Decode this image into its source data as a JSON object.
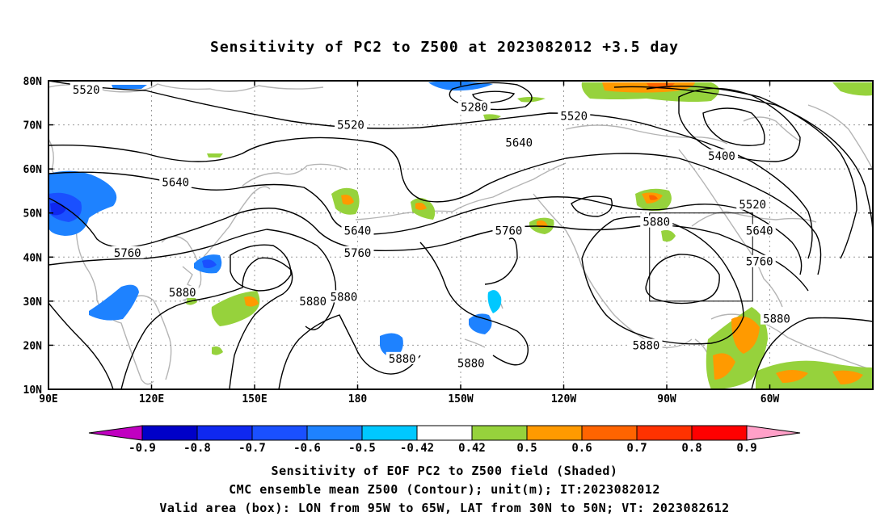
{
  "chart_data": {
    "type": "heatmap",
    "title": "Sensitivity of PC2 to Z500 at 2023082012 +3.5 day",
    "map_extent": {
      "lon": [
        "90E",
        "30W"
      ],
      "lat": [
        "10N",
        "80N"
      ]
    },
    "lat_ticks": [
      "80N",
      "70N",
      "60N",
      "50N",
      "40N",
      "30N",
      "20N",
      "10N"
    ],
    "lon_ticks": [
      "90E",
      "120E",
      "150E",
      "180",
      "150W",
      "120W",
      "90W",
      "60W"
    ],
    "grid": true,
    "colorbar": {
      "ticks": [
        "-0.9",
        "-0.8",
        "-0.7",
        "-0.6",
        "-0.5",
        "-0.42",
        "0.42",
        "0.5",
        "0.6",
        "0.7",
        "0.8",
        "0.9"
      ],
      "colors": [
        "#c000c0",
        "#0000c8",
        "#0f28f0",
        "#1a50ff",
        "#1e82ff",
        "#00c8ff",
        "#ffffff",
        "#96d23c",
        "#ff9a00",
        "#ff6400",
        "#ff3200",
        "#ff0000",
        "#ffa0c8"
      ]
    },
    "contour_labels": [
      {
        "text": "5520",
        "lon": 101,
        "lat": 78
      },
      {
        "text": "5280",
        "lon": -146,
        "lat": 74
      },
      {
        "text": "5520",
        "lon": 178,
        "lat": 70
      },
      {
        "text": "5520",
        "lon": -117,
        "lat": 72
      },
      {
        "text": "5640",
        "lon": -133,
        "lat": 66
      },
      {
        "text": "5400",
        "lon": -74,
        "lat": 63
      },
      {
        "text": "5640",
        "lon": 127,
        "lat": 57
      },
      {
        "text": "5520",
        "lon": -65,
        "lat": 52
      },
      {
        "text": "5880",
        "lon": -93,
        "lat": 48
      },
      {
        "text": "5640",
        "lon": -63,
        "lat": 46
      },
      {
        "text": "5640",
        "lon": 180,
        "lat": 46
      },
      {
        "text": "5760",
        "lon": -136,
        "lat": 46
      },
      {
        "text": "5760",
        "lon": 113,
        "lat": 41
      },
      {
        "text": "5760",
        "lon": 180,
        "lat": 41
      },
      {
        "text": "5760",
        "lon": -63,
        "lat": 39
      },
      {
        "text": "5880",
        "lon": 129,
        "lat": 32
      },
      {
        "text": "5880",
        "lon": 167,
        "lat": 30
      },
      {
        "text": "5880",
        "lon": 176,
        "lat": 31
      },
      {
        "text": "5880",
        "lon": -58,
        "lat": 26
      },
      {
        "text": "5880",
        "lon": -96,
        "lat": 20
      },
      {
        "text": "5880",
        "lon": -167,
        "lat": 17
      },
      {
        "text": "5880",
        "lon": -147,
        "lat": 16
      }
    ],
    "valid_box": {
      "lon": [
        -95,
        -65
      ],
      "lat": [
        30,
        50
      ]
    }
  },
  "footer": {
    "line1": "Sensitivity of EOF PC2 to Z500 field (Shaded)",
    "line2": "CMC ensemble mean Z500 (Contour); unit(m); IT:2023082012",
    "line3": "Valid area (box): LON from 95W to 65W, LAT from 30N to 50N; VT: 2023082612"
  }
}
